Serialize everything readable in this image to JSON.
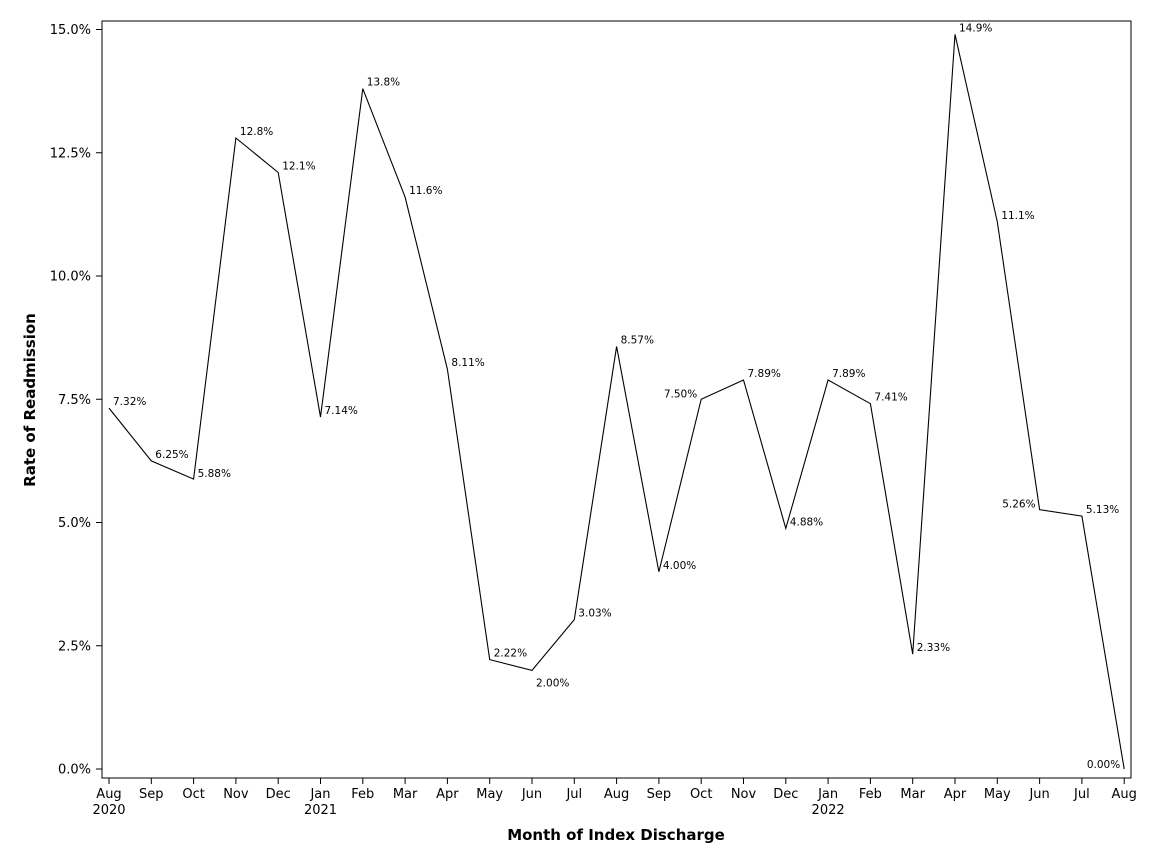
{
  "chart_data": {
    "type": "line",
    "title": "",
    "xlabel": "Month of Index Discharge",
    "ylabel": "Rate of Readmission",
    "ylim": [
      0,
      15
    ],
    "y_ticks": [
      "0.0%",
      "2.5%",
      "5.0%",
      "7.5%",
      "10.0%",
      "12.5%",
      "15.0%"
    ],
    "y_tick_values": [
      0,
      2.5,
      5,
      7.5,
      10,
      12.5,
      15
    ],
    "grid": false,
    "legend": "none",
    "categories": [
      "Aug 2020",
      "Sep 2020",
      "Oct 2020",
      "Nov 2020",
      "Dec 2020",
      "Jan 2021",
      "Feb 2021",
      "Mar 2021",
      "Apr 2021",
      "May 2021",
      "Jun 2021",
      "Jul 2021",
      "Aug 2021",
      "Sep 2021",
      "Oct 2021",
      "Nov 2021",
      "Dec 2021",
      "Jan 2022",
      "Feb 2022",
      "Mar 2022",
      "Apr 2022",
      "May 2022",
      "Jun 2022",
      "Jul 2022",
      "Aug 2022"
    ],
    "x_tick_months": [
      "Aug",
      "Sep",
      "Oct",
      "Nov",
      "Dec",
      "Jan",
      "Feb",
      "Mar",
      "Apr",
      "May",
      "Jun",
      "Jul",
      "Aug",
      "Sep",
      "Oct",
      "Nov",
      "Dec",
      "Jan",
      "Feb",
      "Mar",
      "Apr",
      "May",
      "Jun",
      "Jul",
      "Aug"
    ],
    "x_tick_years": [
      "2020",
      "",
      "",
      "",
      "",
      "2021",
      "",
      "",
      "",
      "",
      "",
      "",
      "",
      "",
      "",
      "",
      "",
      "2022",
      "",
      "",
      "",
      "",
      "",
      "",
      ""
    ],
    "series": [
      {
        "values": [
          7.32,
          6.25,
          5.88,
          12.8,
          12.1,
          7.14,
          13.8,
          11.6,
          8.11,
          2.22,
          2.0,
          3.03,
          8.57,
          4.0,
          7.5,
          7.89,
          4.88,
          7.89,
          7.41,
          2.33,
          14.9,
          11.1,
          5.26,
          5.13,
          0.0
        ],
        "labels": [
          "7.32%",
          "6.25%",
          "5.88%",
          "12.8%",
          "12.1%",
          "7.14%",
          "13.8%",
          "11.6%",
          "8.11%",
          "2.22%",
          "2.00%",
          "3.03%",
          "8.57%",
          "4.00%",
          "7.50%",
          "7.89%",
          "4.88%",
          "7.89%",
          "7.41%",
          "2.33%",
          "14.9%",
          "11.1%",
          "5.26%",
          "5.13%",
          "0.00%"
        ],
        "color": "#000000"
      }
    ]
  }
}
